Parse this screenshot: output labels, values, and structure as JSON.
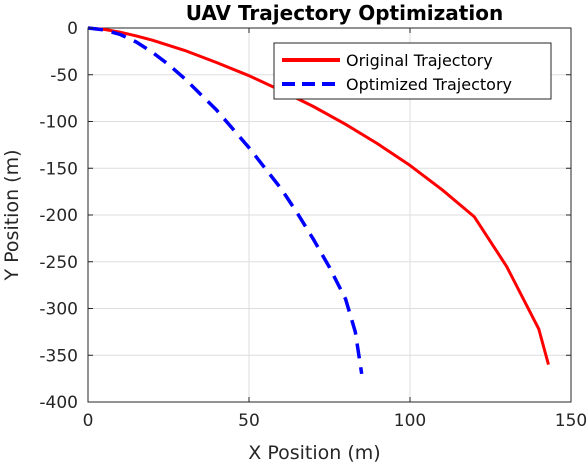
{
  "chart_data": {
    "type": "line",
    "title": "UAV Trajectory Optimization",
    "xlabel": "X Position (m)",
    "ylabel": "Y Position (m)",
    "xlim": [
      0,
      150
    ],
    "ylim": [
      -400,
      0
    ],
    "xticks": [
      0,
      50,
      100,
      150
    ],
    "yticks": [
      0,
      -50,
      -100,
      -150,
      -200,
      -250,
      -300,
      -350,
      -400
    ],
    "xtick_labels": [
      "0",
      "50",
      "100",
      "150"
    ],
    "ytick_labels": [
      "0",
      "-50",
      "-100",
      "-150",
      "-200",
      "-250",
      "-300",
      "-350",
      "-400"
    ],
    "grid": true,
    "legend_position": "top-right",
    "series": [
      {
        "name": "Original Trajectory",
        "color": "#ff0000",
        "style": "solid",
        "x": [
          0,
          5,
          10,
          15,
          20,
          30,
          40,
          50,
          60,
          70,
          80,
          90,
          100,
          110,
          120,
          130,
          140,
          143
        ],
        "y": [
          0,
          -1.5,
          -4.5,
          -8.5,
          -13,
          -24,
          -37,
          -51,
          -67,
          -84,
          -103,
          -124,
          -147,
          -173,
          -202,
          -255,
          -322,
          -360
        ]
      },
      {
        "name": "Optimized Trajectory",
        "color": "#0000ff",
        "style": "dashed",
        "x": [
          0,
          5,
          10,
          15,
          20,
          25,
          30,
          40,
          50,
          60,
          65,
          70,
          75,
          80,
          83,
          85
        ],
        "y": [
          0,
          -2,
          -7,
          -15,
          -26,
          -39,
          -54,
          -88,
          -128,
          -172,
          -198,
          -226,
          -256,
          -290,
          -325,
          -370
        ]
      }
    ]
  }
}
